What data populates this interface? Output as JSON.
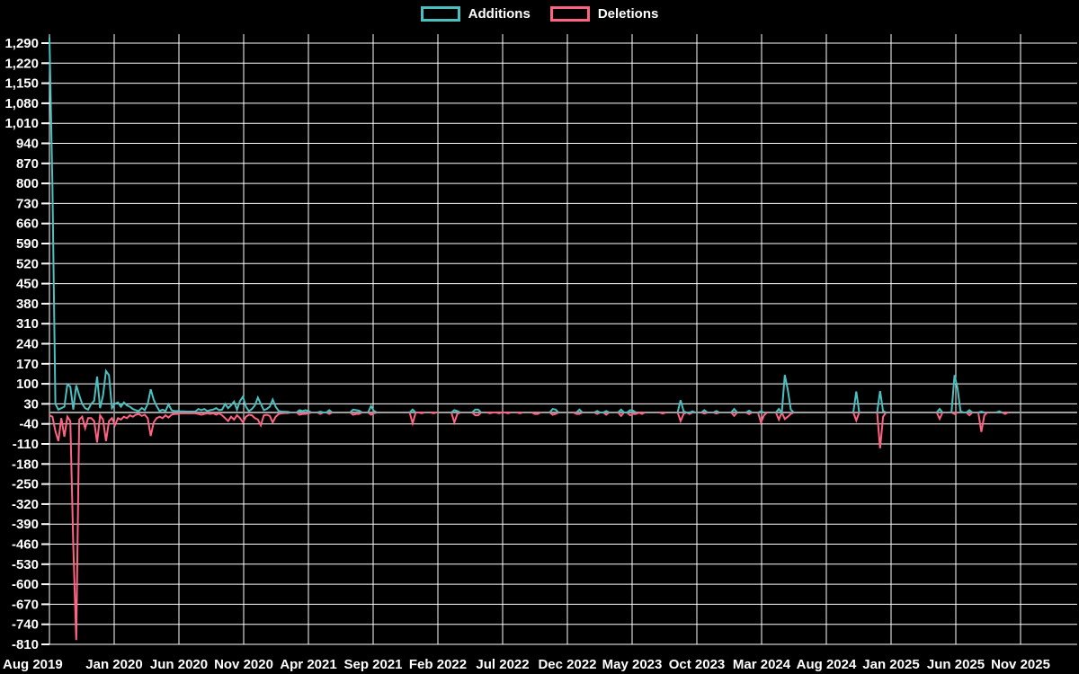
{
  "legend": {
    "additions_label": "Additions",
    "deletions_label": "Deletions"
  },
  "colors": {
    "background": "#000000",
    "additions": "#4bc0c0",
    "deletions": "#ff6384",
    "grid": "#ffffff",
    "zero_line": "#9e9e9e",
    "text": "#ffffff"
  },
  "chart_data": {
    "type": "line",
    "title": "",
    "xlabel": "",
    "ylabel": "",
    "grid": true,
    "legend_position": "top-center",
    "x_unit": "week",
    "x_range": [
      "Aug 2019",
      "Nov 2025"
    ],
    "ylim": [
      -810,
      1290
    ],
    "y_tick_step": 70,
    "y_ticks": [
      1290,
      1220,
      1150,
      1080,
      1010,
      940,
      870,
      800,
      730,
      660,
      590,
      520,
      450,
      380,
      310,
      240,
      170,
      100,
      30,
      -40,
      -110,
      -180,
      -250,
      -320,
      -390,
      -460,
      -530,
      -600,
      -670,
      -740,
      -810
    ],
    "x_tick_labels": [
      "Aug 2019",
      "Jan 2020",
      "Jun 2020",
      "Nov 2020",
      "Apr 2021",
      "Sep 2021",
      "Feb 2022",
      "Jul 2022",
      "Dec 2022",
      "May 2023",
      "Oct 2023",
      "Mar 2024",
      "Aug 2024",
      "Jan 2025",
      "Jun 2025",
      "Nov 2025"
    ],
    "series": [
      {
        "name": "Additions",
        "color": "#4bc0c0",
        "values": [
          1310,
          795,
          30,
          10,
          15,
          20,
          98,
          90,
          10,
          95,
          60,
          30,
          15,
          10,
          30,
          40,
          125,
          15,
          60,
          145,
          130,
          15,
          30,
          35,
          20,
          35,
          25,
          20,
          12,
          8,
          5,
          16,
          8,
          30,
          81,
          45,
          22,
          5,
          10,
          5,
          28,
          8,
          5,
          5,
          4,
          4,
          3,
          3,
          3,
          3,
          12,
          8,
          12,
          5,
          8,
          10,
          15,
          8,
          10,
          30,
          15,
          25,
          38,
          10,
          40,
          55,
          20,
          5,
          12,
          25,
          52,
          30,
          8,
          12,
          20,
          45,
          20,
          5,
          3,
          2,
          2,
          0,
          0,
          0,
          8,
          5,
          8,
          5,
          0,
          0,
          0,
          3,
          0,
          0,
          8,
          0,
          0,
          0,
          0,
          0,
          0,
          0,
          10,
          8,
          6,
          0,
          0,
          0,
          22,
          5,
          0,
          0,
          0,
          0,
          0,
          0,
          0,
          0,
          0,
          0,
          0,
          0,
          10,
          0,
          0,
          0,
          0,
          0,
          0,
          0,
          0,
          0,
          0,
          0,
          0,
          0,
          8,
          5,
          0,
          0,
          0,
          0,
          0,
          10,
          10,
          0,
          0,
          0,
          0,
          0,
          0,
          0,
          0,
          0,
          0,
          0,
          0,
          0,
          0,
          0,
          0,
          0,
          0,
          0,
          0,
          0,
          0,
          0,
          0,
          12,
          10,
          0,
          0,
          0,
          0,
          0,
          0,
          0,
          10,
          0,
          0,
          0,
          0,
          0,
          5,
          0,
          0,
          5,
          0,
          0,
          0,
          0,
          10,
          0,
          0,
          8,
          6,
          0,
          0,
          0,
          0,
          0,
          0,
          0,
          0,
          0,
          0,
          0,
          0,
          0,
          0,
          0,
          43,
          4,
          0,
          0,
          4,
          0,
          0,
          0,
          8,
          0,
          0,
          0,
          5,
          0,
          0,
          0,
          0,
          0,
          12,
          0,
          0,
          0,
          0,
          6,
          0,
          0,
          0,
          4,
          0,
          0,
          0,
          0,
          0,
          12,
          0,
          131,
          80,
          10,
          0,
          0,
          0,
          0,
          0,
          0,
          0,
          0,
          0,
          0,
          0,
          0,
          0,
          0,
          0,
          0,
          0,
          0,
          0,
          0,
          0,
          73,
          0,
          0,
          0,
          0,
          0,
          0,
          0,
          75,
          5,
          0,
          0,
          0,
          0,
          0,
          0,
          0,
          0,
          0,
          0,
          0,
          0,
          0,
          0,
          0,
          0,
          0,
          0,
          12,
          0,
          0,
          0,
          0,
          130,
          85,
          5,
          0,
          0,
          8,
          0,
          0,
          0,
          3,
          0,
          0,
          0,
          0,
          0,
          4,
          0,
          0,
          0,
          0,
          0,
          0,
          0,
          0,
          0,
          0,
          0,
          0,
          0,
          0,
          0,
          0,
          0,
          0,
          0,
          0,
          0,
          0,
          0,
          0,
          0
        ]
      },
      {
        "name": "Deletions",
        "color": "#ff6384",
        "values": [
          -10,
          -15,
          -65,
          -100,
          -20,
          -85,
          -15,
          -30,
          -465,
          -795,
          -25,
          -15,
          -55,
          -20,
          -20,
          -30,
          -105,
          -10,
          -25,
          -100,
          -30,
          -20,
          -45,
          -20,
          -25,
          -15,
          -20,
          -10,
          -15,
          -8,
          -5,
          -12,
          -8,
          -20,
          -82,
          -35,
          -20,
          -15,
          -20,
          -10,
          -18,
          -8,
          -5,
          -5,
          -3,
          -3,
          -3,
          -3,
          -3,
          -3,
          -5,
          -8,
          -5,
          -3,
          -5,
          -3,
          -8,
          -3,
          -10,
          -20,
          -30,
          -15,
          -25,
          -10,
          -20,
          -35,
          -15,
          -8,
          -10,
          -20,
          -25,
          -45,
          -10,
          -8,
          -12,
          -35,
          -15,
          -5,
          -3,
          -2,
          -2,
          0,
          0,
          0,
          -8,
          -5,
          -5,
          -3,
          0,
          0,
          0,
          -5,
          0,
          0,
          -5,
          0,
          0,
          0,
          0,
          0,
          0,
          0,
          -8,
          -5,
          -5,
          0,
          0,
          0,
          -8,
          -3,
          0,
          0,
          0,
          0,
          0,
          0,
          0,
          0,
          0,
          0,
          0,
          0,
          -38,
          0,
          0,
          -3,
          0,
          0,
          0,
          -3,
          0,
          0,
          0,
          0,
          0,
          0,
          -35,
          -5,
          0,
          0,
          0,
          0,
          0,
          -10,
          -10,
          0,
          0,
          0,
          -3,
          0,
          0,
          -3,
          0,
          0,
          -3,
          0,
          0,
          0,
          -3,
          0,
          0,
          0,
          0,
          -5,
          -5,
          0,
          0,
          0,
          0,
          -8,
          -5,
          0,
          0,
          0,
          0,
          0,
          0,
          -5,
          -5,
          0,
          0,
          0,
          0,
          0,
          -5,
          0,
          0,
          -8,
          0,
          0,
          0,
          0,
          -12,
          0,
          0,
          -10,
          -5,
          -5,
          0,
          -5,
          0,
          0,
          0,
          0,
          0,
          0,
          -4,
          0,
          0,
          0,
          0,
          0,
          -30,
          -5,
          0,
          -5,
          0,
          0,
          0,
          0,
          -4,
          0,
          0,
          0,
          -4,
          0,
          0,
          0,
          0,
          0,
          -12,
          0,
          0,
          0,
          0,
          -6,
          0,
          0,
          0,
          -35,
          -10,
          0,
          0,
          0,
          0,
          -25,
          0,
          -23,
          -15,
          -5,
          0,
          0,
          0,
          0,
          0,
          0,
          0,
          0,
          0,
          0,
          0,
          0,
          0,
          0,
          0,
          0,
          0,
          0,
          0,
          0,
          0,
          -28,
          0,
          0,
          0,
          0,
          0,
          0,
          0,
          -125,
          -15,
          0,
          0,
          0,
          0,
          0,
          0,
          0,
          0,
          0,
          0,
          0,
          0,
          0,
          0,
          0,
          0,
          0,
          0,
          -22,
          0,
          0,
          0,
          0,
          -5,
          0,
          0,
          0,
          0,
          -10,
          0,
          0,
          0,
          -68,
          -10,
          0,
          0,
          0,
          0,
          0,
          0,
          -5,
          0,
          0,
          0,
          0,
          0,
          0,
          0,
          0,
          0,
          0,
          0,
          0,
          0,
          0,
          0,
          0,
          0,
          0,
          0,
          0,
          0,
          0,
          0
        ]
      }
    ]
  }
}
